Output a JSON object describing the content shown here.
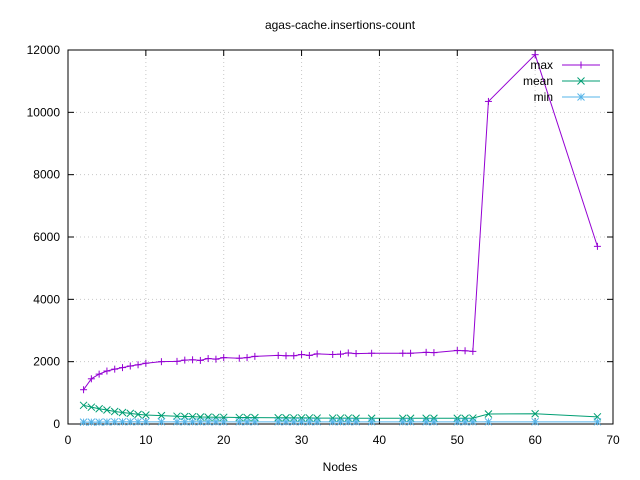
{
  "chart_data": {
    "type": "line",
    "title": "agas-cache.insertions-count",
    "xlabel": "Nodes",
    "ylabel": "",
    "xlim": [
      0,
      70
    ],
    "ylim": [
      0,
      12000
    ],
    "xticks": [
      0,
      10,
      20,
      30,
      40,
      50,
      60,
      70
    ],
    "yticks": [
      0,
      2000,
      4000,
      6000,
      8000,
      10000,
      12000
    ],
    "grid": true,
    "legend_position": "top-right",
    "series": [
      {
        "name": "max",
        "color": "#9400d3",
        "marker": "plus",
        "points": [
          [
            2,
            1100
          ],
          [
            3,
            1450
          ],
          [
            4,
            1600
          ],
          [
            5,
            1700
          ],
          [
            6,
            1760
          ],
          [
            7,
            1810
          ],
          [
            8,
            1860
          ],
          [
            9,
            1900
          ],
          [
            10,
            1950
          ],
          [
            12,
            2000
          ],
          [
            14,
            2010
          ],
          [
            15,
            2050
          ],
          [
            16,
            2060
          ],
          [
            17,
            2040
          ],
          [
            18,
            2100
          ],
          [
            19,
            2080
          ],
          [
            20,
            2130
          ],
          [
            22,
            2110
          ],
          [
            23,
            2130
          ],
          [
            24,
            2170
          ],
          [
            27,
            2200
          ],
          [
            28,
            2190
          ],
          [
            29,
            2190
          ],
          [
            30,
            2230
          ],
          [
            31,
            2200
          ],
          [
            32,
            2250
          ],
          [
            34,
            2230
          ],
          [
            35,
            2240
          ],
          [
            36,
            2280
          ],
          [
            37,
            2260
          ],
          [
            39,
            2270
          ],
          [
            43,
            2270
          ],
          [
            44,
            2270
          ],
          [
            46,
            2300
          ],
          [
            47,
            2290
          ],
          [
            50,
            2360
          ],
          [
            51,
            2350
          ],
          [
            52,
            2330
          ],
          [
            54,
            10350
          ],
          [
            60,
            11850
          ],
          [
            68,
            5700
          ]
        ]
      },
      {
        "name": "mean",
        "color": "#009e73",
        "marker": "cross",
        "points": [
          [
            2,
            600
          ],
          [
            3,
            540
          ],
          [
            4,
            490
          ],
          [
            5,
            450
          ],
          [
            6,
            400
          ],
          [
            7,
            370
          ],
          [
            8,
            340
          ],
          [
            9,
            310
          ],
          [
            10,
            290
          ],
          [
            12,
            270
          ],
          [
            14,
            250
          ],
          [
            15,
            240
          ],
          [
            16,
            235
          ],
          [
            17,
            225
          ],
          [
            18,
            220
          ],
          [
            19,
            215
          ],
          [
            20,
            215
          ],
          [
            22,
            210
          ],
          [
            23,
            210
          ],
          [
            24,
            205
          ],
          [
            27,
            200
          ],
          [
            28,
            200
          ],
          [
            29,
            195
          ],
          [
            30,
            195
          ],
          [
            31,
            195
          ],
          [
            32,
            190
          ],
          [
            34,
            190
          ],
          [
            35,
            190
          ],
          [
            36,
            190
          ],
          [
            37,
            185
          ],
          [
            39,
            185
          ],
          [
            43,
            185
          ],
          [
            44,
            185
          ],
          [
            46,
            185
          ],
          [
            47,
            185
          ],
          [
            50,
            185
          ],
          [
            51,
            185
          ],
          [
            52,
            190
          ],
          [
            54,
            320
          ],
          [
            60,
            330
          ],
          [
            68,
            230
          ]
        ]
      },
      {
        "name": "min",
        "color": "#56b4e9",
        "marker": "star",
        "points": [
          [
            2,
            60
          ],
          [
            3,
            60
          ],
          [
            4,
            60
          ],
          [
            5,
            65
          ],
          [
            6,
            70
          ],
          [
            7,
            70
          ],
          [
            8,
            70
          ],
          [
            9,
            70
          ],
          [
            10,
            70
          ],
          [
            12,
            70
          ],
          [
            14,
            70
          ],
          [
            15,
            70
          ],
          [
            16,
            70
          ],
          [
            17,
            70
          ],
          [
            18,
            70
          ],
          [
            19,
            70
          ],
          [
            20,
            70
          ],
          [
            22,
            70
          ],
          [
            23,
            70
          ],
          [
            24,
            70
          ],
          [
            27,
            70
          ],
          [
            28,
            70
          ],
          [
            29,
            70
          ],
          [
            30,
            70
          ],
          [
            31,
            70
          ],
          [
            32,
            70
          ],
          [
            34,
            70
          ],
          [
            35,
            70
          ],
          [
            36,
            70
          ],
          [
            37,
            70
          ],
          [
            39,
            70
          ],
          [
            43,
            70
          ],
          [
            44,
            70
          ],
          [
            46,
            70
          ],
          [
            47,
            70
          ],
          [
            50,
            70
          ],
          [
            51,
            70
          ],
          [
            52,
            70
          ],
          [
            54,
            70
          ],
          [
            60,
            70
          ],
          [
            68,
            70
          ]
        ]
      }
    ]
  }
}
